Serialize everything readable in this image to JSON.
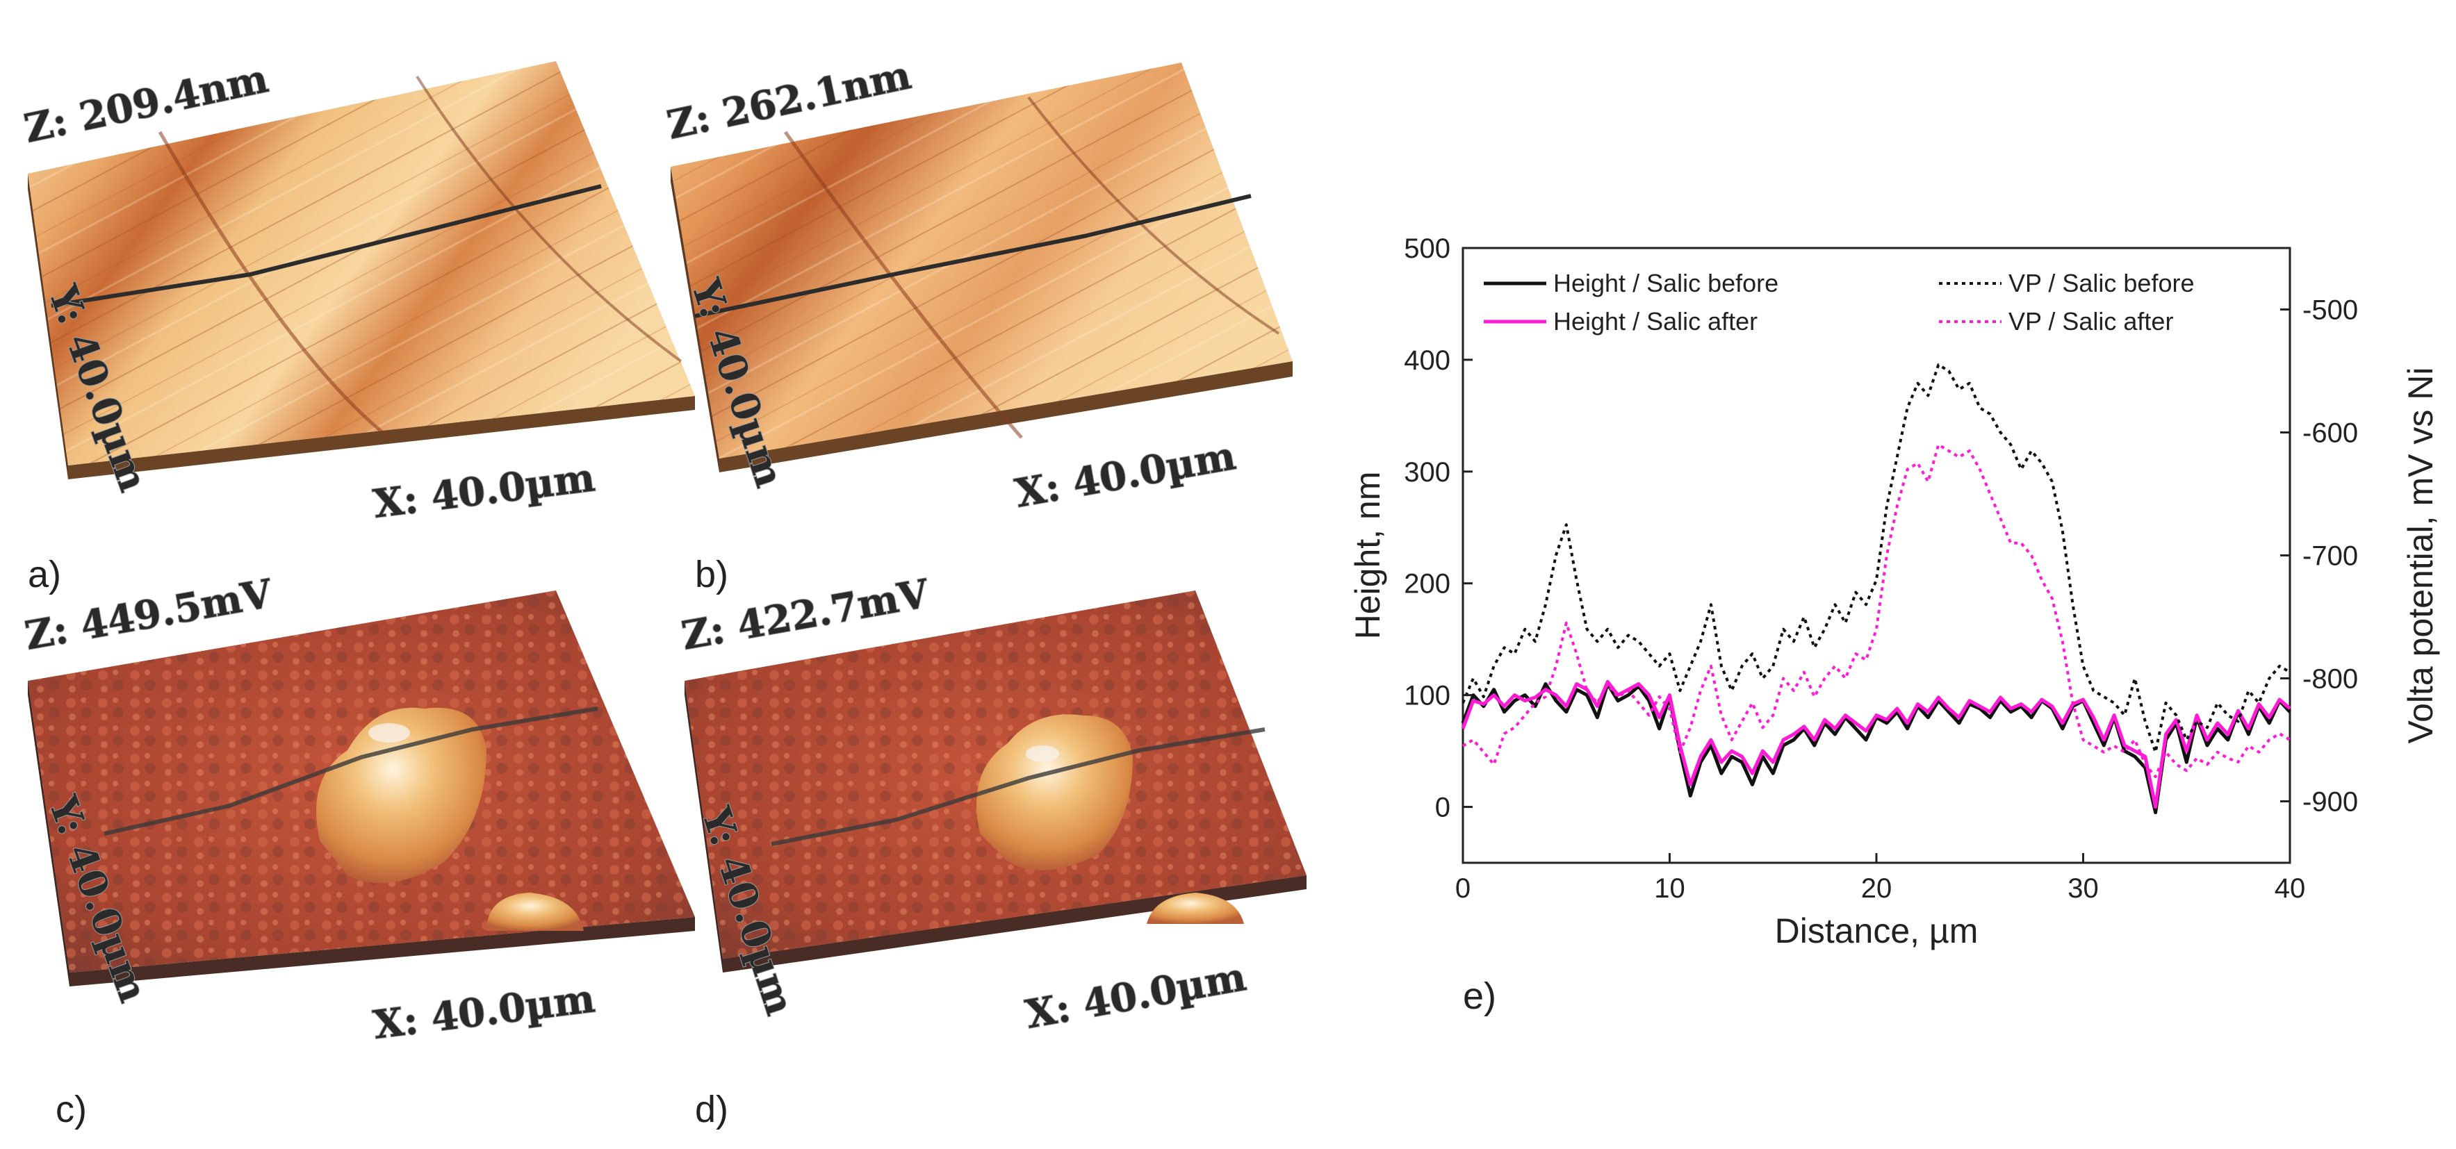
{
  "panels": {
    "a": {
      "letter": "a)",
      "z": "Z: 209.4nm",
      "y": "Y: 40.0µm",
      "x": "X: 40.0µm"
    },
    "b": {
      "letter": "b)",
      "z": "Z: 262.1nm",
      "y": "Y: 40.0µm",
      "x": "X: 40.0µm"
    },
    "c": {
      "letter": "c)",
      "z": "Z: 449.5mV",
      "y": "Y: 40.0µm",
      "x": "X: 40.0µm"
    },
    "d": {
      "letter": "d)",
      "z": "Z: 422.7mV",
      "y": "Y: 40.0µm",
      "x": "X: 40.0µm"
    },
    "e": {
      "letter": "e)"
    }
  },
  "colors": {
    "black_series": "#111111",
    "magenta_series": "#ff1bd6",
    "topo_light": "#f7c98a",
    "topo_dark": "#b8592a",
    "kelvin_base": "#b84a33",
    "kelvin_peak": "#f3c27a"
  },
  "chart_data": {
    "type": "line",
    "xlabel": "Distance, µm",
    "ylabel": "Height, nm",
    "y2label": "Volta potential, mV vs Ni",
    "xlim": [
      0,
      40
    ],
    "ylim": [
      -50,
      500
    ],
    "y2lim": [
      -950,
      -450
    ],
    "xticks": [
      0,
      10,
      20,
      30,
      40
    ],
    "yticks": [
      0,
      100,
      200,
      300,
      400,
      500
    ],
    "y2ticks": [
      -500,
      -600,
      -700,
      -800,
      -900
    ],
    "legend_left": [
      "Height / Salic before",
      "Height / Salic after"
    ],
    "legend_right": [
      "VP / Salic before",
      "VP / Salic after"
    ],
    "series": [
      {
        "name": "Height / Salic before",
        "axis": "left",
        "style": "solid",
        "color": "#111111",
        "x": [
          0,
          0.5,
          1,
          1.5,
          2,
          2.5,
          3,
          3.5,
          4,
          4.5,
          5,
          5.5,
          6,
          6.5,
          7,
          7.5,
          8,
          8.5,
          9,
          9.5,
          10,
          10.5,
          11,
          11.5,
          12,
          12.5,
          13,
          13.5,
          14,
          14.5,
          15,
          15.5,
          16,
          16.5,
          17,
          17.5,
          18,
          18.5,
          19,
          19.5,
          20,
          20.5,
          21,
          21.5,
          22,
          22.5,
          23,
          23.5,
          24,
          24.5,
          25,
          25.5,
          26,
          26.5,
          27,
          27.5,
          28,
          28.5,
          29,
          29.5,
          30,
          30.5,
          31,
          31.5,
          32,
          32.5,
          33,
          33.5,
          34,
          34.5,
          35,
          35.5,
          36,
          36.5,
          37,
          37.5,
          38,
          38.5,
          39,
          39.5,
          40
        ],
        "y": [
          75,
          100,
          90,
          105,
          85,
          95,
          100,
          90,
          110,
          95,
          85,
          105,
          100,
          80,
          110,
          95,
          100,
          108,
          95,
          70,
          98,
          50,
          10,
          40,
          55,
          30,
          45,
          40,
          20,
          45,
          30,
          55,
          60,
          70,
          55,
          75,
          65,
          80,
          70,
          60,
          80,
          75,
          85,
          70,
          90,
          80,
          95,
          85,
          75,
          92,
          88,
          80,
          95,
          85,
          90,
          80,
          95,
          88,
          70,
          90,
          95,
          75,
          55,
          80,
          50,
          45,
          35,
          -5,
          60,
          75,
          40,
          80,
          55,
          70,
          60,
          85,
          65,
          90,
          75,
          95,
          85
        ]
      },
      {
        "name": "Height / Salic after",
        "axis": "left",
        "style": "solid",
        "color": "#ff1bd6",
        "x": [
          0,
          0.5,
          1,
          1.5,
          2,
          2.5,
          3,
          3.5,
          4,
          4.5,
          5,
          5.5,
          6,
          6.5,
          7,
          7.5,
          8,
          8.5,
          9,
          9.5,
          10,
          10.5,
          11,
          11.5,
          12,
          12.5,
          13,
          13.5,
          14,
          14.5,
          15,
          15.5,
          16,
          16.5,
          17,
          17.5,
          18,
          18.5,
          19,
          19.5,
          20,
          20.5,
          21,
          21.5,
          22,
          22.5,
          23,
          23.5,
          24,
          24.5,
          25,
          25.5,
          26,
          26.5,
          27,
          27.5,
          28,
          28.5,
          29,
          29.5,
          30,
          30.5,
          31,
          31.5,
          32,
          32.5,
          33,
          33.5,
          34,
          34.5,
          35,
          35.5,
          36,
          36.5,
          37,
          37.5,
          38,
          38.5,
          39,
          39.5,
          40
        ],
        "y": [
          70,
          95,
          92,
          100,
          90,
          100,
          95,
          98,
          105,
          100,
          90,
          110,
          105,
          90,
          112,
          100,
          105,
          110,
          100,
          80,
          100,
          55,
          20,
          45,
          60,
          40,
          50,
          45,
          30,
          50,
          40,
          60,
          65,
          72,
          60,
          78,
          70,
          82,
          75,
          68,
          82,
          78,
          88,
          75,
          92,
          85,
          98,
          88,
          80,
          95,
          90,
          85,
          98,
          88,
          92,
          85,
          96,
          90,
          75,
          92,
          96,
          80,
          60,
          82,
          55,
          50,
          45,
          0,
          65,
          78,
          50,
          82,
          60,
          75,
          65,
          86,
          70,
          92,
          80,
          96,
          88
        ]
      },
      {
        "name": "VP / Salic before",
        "axis": "right",
        "style": "dotted",
        "color": "#111111",
        "x": [
          0,
          0.5,
          1,
          1.5,
          2,
          2.5,
          3,
          3.5,
          4,
          4.5,
          5,
          5.5,
          6,
          6.5,
          7,
          7.5,
          8,
          8.5,
          9,
          9.5,
          10,
          10.5,
          11,
          11.5,
          12,
          12.5,
          13,
          13.5,
          14,
          14.5,
          15,
          15.5,
          16,
          16.5,
          17,
          17.5,
          18,
          18.5,
          19,
          19.5,
          20,
          20.5,
          21,
          21.5,
          22,
          22.5,
          23,
          23.5,
          24,
          24.5,
          25,
          25.5,
          26,
          26.5,
          27,
          27.5,
          28,
          28.5,
          29,
          29.5,
          30,
          30.5,
          31,
          31.5,
          32,
          32.5,
          33,
          33.5,
          34,
          34.5,
          35,
          35.5,
          36,
          36.5,
          37,
          37.5,
          38,
          38.5,
          39,
          39.5,
          40
        ],
        "y": [
          -820,
          -800,
          -815,
          -790,
          -775,
          -780,
          -760,
          -770,
          -740,
          -700,
          -675,
          -720,
          -760,
          -770,
          -760,
          -775,
          -765,
          -770,
          -780,
          -790,
          -780,
          -810,
          -790,
          -770,
          -740,
          -790,
          -810,
          -790,
          -780,
          -800,
          -790,
          -760,
          -770,
          -750,
          -775,
          -760,
          -740,
          -755,
          -730,
          -740,
          -720,
          -660,
          -620,
          -580,
          -560,
          -570,
          -545,
          -550,
          -565,
          -560,
          -580,
          -585,
          -600,
          -610,
          -630,
          -615,
          -625,
          -640,
          -680,
          -740,
          -790,
          -810,
          -815,
          -820,
          -830,
          -800,
          -835,
          -860,
          -820,
          -830,
          -850,
          -835,
          -840,
          -820,
          -830,
          -835,
          -810,
          -820,
          -800,
          -790,
          -795
        ]
      },
      {
        "name": "VP / Salic after",
        "axis": "right",
        "style": "dotted",
        "color": "#ff1bd6",
        "x": [
          0,
          0.5,
          1,
          1.5,
          2,
          2.5,
          3,
          3.5,
          4,
          4.5,
          5,
          5.5,
          6,
          6.5,
          7,
          7.5,
          8,
          8.5,
          9,
          9.5,
          10,
          10.5,
          11,
          11.5,
          12,
          12.5,
          13,
          13.5,
          14,
          14.5,
          15,
          15.5,
          16,
          16.5,
          17,
          17.5,
          18,
          18.5,
          19,
          19.5,
          20,
          20.5,
          21,
          21.5,
          22,
          22.5,
          23,
          23.5,
          24,
          24.5,
          25,
          25.5,
          26,
          26.5,
          27,
          27.5,
          28,
          28.5,
          29,
          29.5,
          30,
          30.5,
          31,
          31.5,
          32,
          32.5,
          33,
          33.5,
          34,
          34.5,
          35,
          35.5,
          36,
          36.5,
          37,
          37.5,
          38,
          38.5,
          39,
          39.5,
          40
        ],
        "y": [
          -855,
          -850,
          -860,
          -870,
          -845,
          -840,
          -830,
          -820,
          -815,
          -790,
          -755,
          -780,
          -810,
          -820,
          -805,
          -815,
          -810,
          -820,
          -830,
          -815,
          -825,
          -860,
          -840,
          -810,
          -790,
          -830,
          -850,
          -835,
          -820,
          -840,
          -830,
          -800,
          -810,
          -795,
          -815,
          -800,
          -790,
          -800,
          -780,
          -785,
          -760,
          -700,
          -660,
          -630,
          -625,
          -640,
          -610,
          -615,
          -620,
          -615,
          -630,
          -650,
          -670,
          -690,
          -690,
          -700,
          -720,
          -735,
          -770,
          -820,
          -850,
          -855,
          -860,
          -855,
          -860,
          -850,
          -870,
          -880,
          -860,
          -870,
          -875,
          -865,
          -870,
          -860,
          -865,
          -868,
          -855,
          -860,
          -850,
          -845,
          -850
        ]
      }
    ]
  }
}
